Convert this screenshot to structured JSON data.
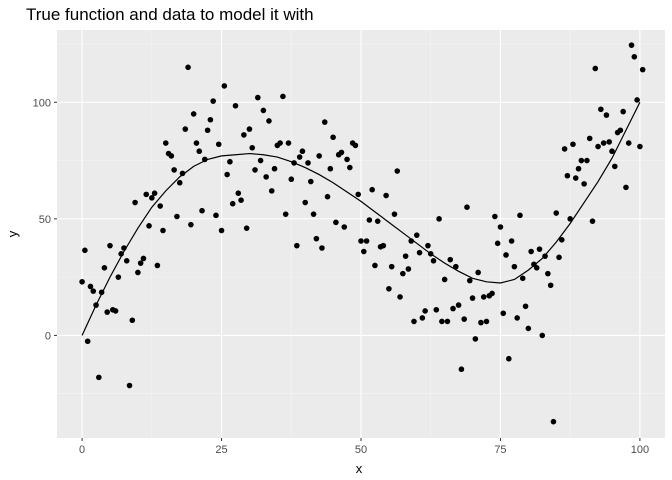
{
  "chart_data": {
    "type": "scatter",
    "title": "True function and data to model it with",
    "xlabel": "x",
    "ylabel": "y",
    "xlim": [
      -4.5,
      104.5
    ],
    "ylim": [
      -44,
      131
    ],
    "x_ticks": [
      0,
      25,
      50,
      75,
      100
    ],
    "y_ticks": [
      0,
      50,
      100
    ],
    "x_tick_labels": [
      "0",
      "25",
      "50",
      "75",
      "100"
    ],
    "y_tick_labels": [
      "0",
      "50",
      "100"
    ],
    "grid": true,
    "legend": "none",
    "colors": {
      "panel": "#ebebeb",
      "grid_major": "#ffffff",
      "grid_minor": "#f5f5f5",
      "points": "#000000",
      "line": "#000000",
      "tick_text": "#4d4d4d",
      "tick_mark": "#333333"
    },
    "series": [
      {
        "type": "line",
        "x": [
          0,
          2.5,
          5,
          7.5,
          10,
          12.5,
          15,
          17.5,
          20,
          22.5,
          25,
          27.5,
          30,
          32.5,
          35,
          37.5,
          40,
          42.5,
          45,
          47.5,
          50,
          52.5,
          55,
          57.5,
          60,
          62.5,
          65,
          67.5,
          70,
          72.5,
          75,
          77.5,
          80,
          82.5,
          85,
          87.5,
          90,
          92.5,
          95,
          97.5,
          100
        ],
        "values": [
          0,
          13,
          25,
          36,
          46,
          55,
          62,
          68,
          72.5,
          75.5,
          77,
          77.5,
          78,
          77.5,
          76.5,
          74.5,
          72,
          69,
          65.5,
          61.5,
          57.5,
          53,
          48.5,
          44,
          39.5,
          35,
          31,
          27.5,
          24.5,
          23,
          22.5,
          24,
          28,
          33,
          40,
          48,
          57,
          66,
          76,
          88,
          100
        ]
      },
      {
        "type": "scatter",
        "points": [
          [
            0,
            23
          ],
          [
            0.5,
            36.5
          ],
          [
            1,
            -2.5
          ],
          [
            1.5,
            21
          ],
          [
            2,
            19
          ],
          [
            2.5,
            13
          ],
          [
            3,
            -18
          ],
          [
            3.5,
            18.5
          ],
          [
            4,
            29
          ],
          [
            4.5,
            10
          ],
          [
            5,
            38.5
          ],
          [
            5.5,
            11
          ],
          [
            6,
            10.5
          ],
          [
            6.5,
            25
          ],
          [
            7,
            35
          ],
          [
            7.5,
            37.5
          ],
          [
            8,
            32
          ],
          [
            8.5,
            -21.5
          ],
          [
            9,
            6.5
          ],
          [
            9.5,
            57
          ],
          [
            10,
            27
          ],
          [
            10.5,
            31
          ],
          [
            11,
            33
          ],
          [
            11.5,
            60.5
          ],
          [
            12,
            47
          ],
          [
            12.5,
            59
          ],
          [
            13,
            61
          ],
          [
            13.5,
            30
          ],
          [
            14,
            55.5
          ],
          [
            14.5,
            45
          ],
          [
            15,
            82.5
          ],
          [
            15.5,
            78
          ],
          [
            16,
            77
          ],
          [
            16.5,
            71
          ],
          [
            17,
            51
          ],
          [
            17.5,
            65.5
          ],
          [
            18,
            69.5
          ],
          [
            18.5,
            88.5
          ],
          [
            19,
            115
          ],
          [
            19.5,
            47.5
          ],
          [
            20,
            95
          ],
          [
            20.5,
            82.5
          ],
          [
            21,
            79
          ],
          [
            21.5,
            53.5
          ],
          [
            22,
            75.5
          ],
          [
            22.5,
            88
          ],
          [
            23,
            92.5
          ],
          [
            23.5,
            100.5
          ],
          [
            24,
            51.5
          ],
          [
            24.5,
            82
          ],
          [
            25,
            45
          ],
          [
            25.5,
            107
          ],
          [
            26,
            69
          ],
          [
            26.5,
            74.5
          ],
          [
            27,
            56.5
          ],
          [
            27.5,
            98.5
          ],
          [
            28,
            61
          ],
          [
            28.5,
            58
          ],
          [
            29,
            86
          ],
          [
            29.5,
            46
          ],
          [
            30,
            88.5
          ],
          [
            30.5,
            80.5
          ],
          [
            31,
            71
          ],
          [
            31.5,
            102
          ],
          [
            32,
            75
          ],
          [
            32.5,
            96.5
          ],
          [
            33,
            68
          ],
          [
            33.5,
            92
          ],
          [
            34,
            62
          ],
          [
            34.5,
            71.5
          ],
          [
            35,
            81.5
          ],
          [
            35.5,
            82.5
          ],
          [
            36,
            102.5
          ],
          [
            36.5,
            52
          ],
          [
            37,
            82.5
          ],
          [
            37.5,
            67
          ],
          [
            38,
            74
          ],
          [
            38.5,
            38.5
          ],
          [
            39,
            76.5
          ],
          [
            39.5,
            79
          ],
          [
            40,
            57
          ],
          [
            40.5,
            74
          ],
          [
            41,
            66
          ],
          [
            41.5,
            52
          ],
          [
            42,
            41.5
          ],
          [
            42.5,
            77
          ],
          [
            43,
            37.5
          ],
          [
            43.5,
            91.5
          ],
          [
            44,
            59.5
          ],
          [
            44.5,
            71.5
          ],
          [
            45,
            85
          ],
          [
            45.5,
            48.5
          ],
          [
            46,
            77.5
          ],
          [
            46.5,
            78.5
          ],
          [
            47,
            46.5
          ],
          [
            47.5,
            75.5
          ],
          [
            48,
            72
          ],
          [
            48.5,
            82.5
          ],
          [
            49,
            81.5
          ],
          [
            49.5,
            60.5
          ],
          [
            50,
            40.5
          ],
          [
            50.5,
            36
          ],
          [
            51,
            40.5
          ],
          [
            51.5,
            49.5
          ],
          [
            52,
            62.5
          ],
          [
            52.5,
            30
          ],
          [
            53,
            49
          ],
          [
            53.5,
            38
          ],
          [
            54,
            38.5
          ],
          [
            54.5,
            60
          ],
          [
            55,
            20
          ],
          [
            55.5,
            29.5
          ],
          [
            56,
            52
          ],
          [
            56.5,
            70.5
          ],
          [
            57,
            16.5
          ],
          [
            57.5,
            26.5
          ],
          [
            58,
            34
          ],
          [
            58.5,
            28.5
          ],
          [
            59,
            40.5
          ],
          [
            59.5,
            6
          ],
          [
            60,
            43
          ],
          [
            60.5,
            35.5
          ],
          [
            61,
            7.5
          ],
          [
            61.5,
            10.5
          ],
          [
            62,
            38.5
          ],
          [
            62.5,
            35
          ],
          [
            63,
            32
          ],
          [
            63.5,
            11
          ],
          [
            64,
            50
          ],
          [
            64.5,
            6
          ],
          [
            65,
            24
          ],
          [
            65.5,
            6
          ],
          [
            66,
            32.5
          ],
          [
            66.5,
            11.5
          ],
          [
            67,
            29.5
          ],
          [
            67.5,
            13
          ],
          [
            68,
            -14.5
          ],
          [
            68.5,
            7
          ],
          [
            69,
            55
          ],
          [
            69.5,
            23.5
          ],
          [
            70,
            16
          ],
          [
            70.5,
            -1.5
          ],
          [
            71,
            27
          ],
          [
            71.5,
            5.5
          ],
          [
            72,
            16.5
          ],
          [
            72.5,
            6
          ],
          [
            73,
            17
          ],
          [
            73.5,
            18
          ],
          [
            74,
            51
          ],
          [
            74.5,
            39.5
          ],
          [
            75,
            46.5
          ],
          [
            75.5,
            9.5
          ],
          [
            76,
            34.5
          ],
          [
            76.5,
            -10
          ],
          [
            77,
            40.5
          ],
          [
            77.5,
            29.5
          ],
          [
            78,
            7.5
          ],
          [
            78.5,
            51.5
          ],
          [
            79,
            24.5
          ],
          [
            79.5,
            12.5
          ],
          [
            80,
            3
          ],
          [
            80.5,
            36
          ],
          [
            81,
            30.5
          ],
          [
            81.5,
            29
          ],
          [
            82,
            37
          ],
          [
            82.5,
            0
          ],
          [
            83,
            34
          ],
          [
            83.5,
            26.5
          ],
          [
            84,
            21.5
          ],
          [
            84.5,
            -37
          ],
          [
            85,
            52.5
          ],
          [
            85.5,
            33.5
          ],
          [
            86,
            41
          ],
          [
            86.5,
            80
          ],
          [
            87,
            68.5
          ],
          [
            87.5,
            50
          ],
          [
            88,
            82
          ],
          [
            88.5,
            67.5
          ],
          [
            89,
            71.5
          ],
          [
            89.5,
            75
          ],
          [
            90,
            65
          ],
          [
            90.5,
            75
          ],
          [
            91,
            84.5
          ],
          [
            91.5,
            49
          ],
          [
            92,
            114.5
          ],
          [
            92.5,
            81
          ],
          [
            93,
            97
          ],
          [
            93.5,
            82.5
          ],
          [
            94,
            94.5
          ],
          [
            94.5,
            83
          ],
          [
            95,
            79
          ],
          [
            95.5,
            72.5
          ],
          [
            96,
            87
          ],
          [
            96.5,
            88
          ],
          [
            97,
            96
          ],
          [
            97.5,
            63.5
          ],
          [
            98,
            82.5
          ],
          [
            98.5,
            124.5
          ],
          [
            99,
            119.5
          ],
          [
            99.5,
            101
          ],
          [
            100,
            81
          ],
          [
            100.5,
            114
          ]
        ]
      }
    ]
  }
}
